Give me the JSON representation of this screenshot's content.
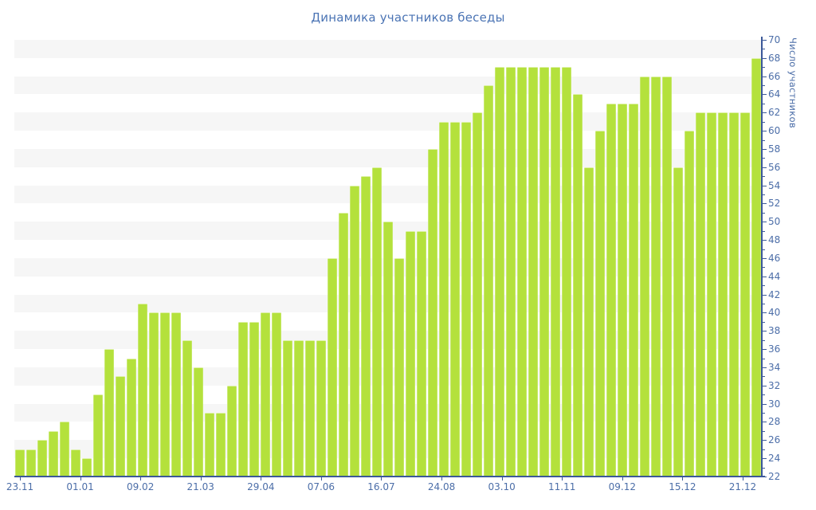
{
  "chart_data": {
    "type": "bar",
    "title": "Динамика участников беседы",
    "ylabel": "Число участников",
    "xlabel": "",
    "x_tick_labels": [
      "23.11",
      "01.01",
      "09.02",
      "21.03",
      "29.04",
      "07.06",
      "16.07",
      "24.08",
      "03.10",
      "11.11",
      "09.12",
      "15.12",
      "21.12"
    ],
    "values": [
      25,
      25,
      26,
      27,
      28,
      25,
      24,
      31,
      36,
      33,
      35,
      41,
      40,
      40,
      40,
      37,
      34,
      29,
      29,
      32,
      39,
      39,
      40,
      40,
      37,
      37,
      37,
      37,
      46,
      51,
      54,
      55,
      56,
      50,
      46,
      49,
      49,
      58,
      61,
      61,
      61,
      62,
      65,
      67,
      67,
      67,
      67,
      67,
      67,
      67,
      64,
      56,
      60,
      63,
      63,
      63,
      66,
      66,
      66,
      56,
      60,
      62,
      62,
      62,
      62,
      62,
      68
    ],
    "ylim": [
      22,
      70
    ],
    "y_tick_step": 2,
    "y_minor_tick_step": 1,
    "legend_position": "none",
    "grid": "horizontal-stripes",
    "colors": {
      "bar": "#b4e13c",
      "stripe": "#f6f6f6",
      "axis": "#3b5898",
      "tick_text": "#4c6ea8",
      "title_text": "#4b74b4",
      "background": "#ffffff"
    }
  }
}
